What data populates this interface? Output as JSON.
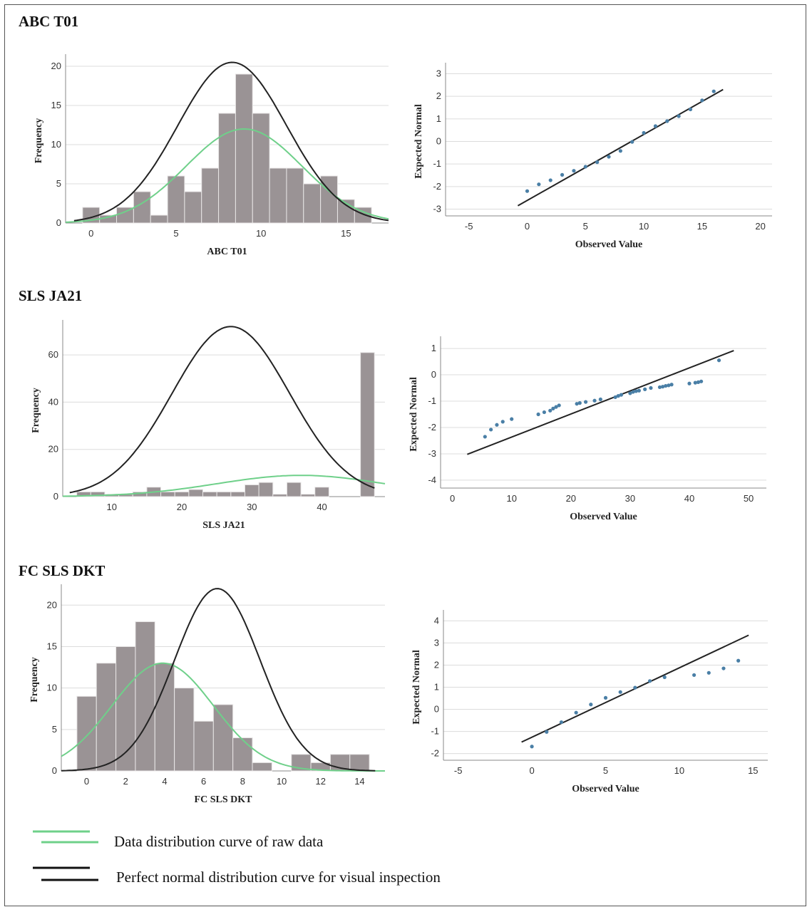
{
  "panel_titles": [
    "ABC T01",
    "SLS JA21",
    "FC SLS DKT"
  ],
  "legend": {
    "raw": "Data distribution curve of raw data",
    "normal": "Perfect normal distribution curve for visual inspection"
  },
  "colors": {
    "bar": "#9a9395",
    "bar_edge": "#e8e6e6",
    "raw_curve": "#6fd08a",
    "normal_curve": "#222222",
    "point": "#4a7fa6",
    "grid": "#dcdcdc"
  },
  "chart_data": [
    {
      "id": "hist-abc",
      "type": "bar",
      "title": "ABC T01",
      "xlabel": "ABC T01",
      "ylabel": "Frequency",
      "xlim": [
        -1.5,
        17.5
      ],
      "ylim": [
        0,
        21
      ],
      "xticks": [
        0,
        5,
        10,
        15
      ],
      "yticks": [
        0,
        5,
        10,
        15,
        20
      ],
      "bin_width": 1,
      "bins": [
        {
          "x": 0,
          "y": 2
        },
        {
          "x": 1,
          "y": 1
        },
        {
          "x": 2,
          "y": 2
        },
        {
          "x": 3,
          "y": 4
        },
        {
          "x": 4,
          "y": 1
        },
        {
          "x": 5,
          "y": 6
        },
        {
          "x": 6,
          "y": 4
        },
        {
          "x": 7,
          "y": 7
        },
        {
          "x": 8,
          "y": 14
        },
        {
          "x": 9,
          "y": 19
        },
        {
          "x": 10,
          "y": 14
        },
        {
          "x": 11,
          "y": 7
        },
        {
          "x": 12,
          "y": 7
        },
        {
          "x": 13,
          "y": 5
        },
        {
          "x": 14,
          "y": 6
        },
        {
          "x": 15,
          "y": 3
        },
        {
          "x": 16,
          "y": 2
        }
      ],
      "normal_curve": {
        "mean": 8.3,
        "sd": 3.2,
        "peak": 20.5,
        "x_range": [
          -1,
          17.5
        ]
      },
      "raw_curve": {
        "mean": 9.0,
        "sd": 3.4,
        "peak": 12,
        "x_range": [
          -1.5,
          17.5
        ]
      }
    },
    {
      "id": "qq-abc",
      "type": "scatter",
      "xlabel": "Observed Value",
      "ylabel": "Expected Normal",
      "xlim": [
        -7,
        21
      ],
      "ylim": [
        -3.3,
        3.3
      ],
      "xticks": [
        -5,
        0,
        5,
        10,
        15,
        20
      ],
      "yticks": [
        -3,
        -2,
        -1,
        0,
        1,
        2,
        3
      ],
      "points": [
        [
          0,
          -2.2
        ],
        [
          1,
          -1.9
        ],
        [
          2,
          -1.72
        ],
        [
          3,
          -1.48
        ],
        [
          4,
          -1.3
        ],
        [
          5,
          -1.12
        ],
        [
          6,
          -0.92
        ],
        [
          7,
          -0.68
        ],
        [
          8,
          -0.42
        ],
        [
          9,
          -0.02
        ],
        [
          10,
          0.38
        ],
        [
          11,
          0.68
        ],
        [
          12,
          0.9
        ],
        [
          13,
          1.12
        ],
        [
          14,
          1.42
        ],
        [
          15,
          1.82
        ],
        [
          16,
          2.22
        ]
      ],
      "line": [
        [
          -0.8,
          -2.85
        ],
        [
          16.8,
          2.3
        ]
      ]
    },
    {
      "id": "hist-sls",
      "type": "bar",
      "title": "SLS JA21",
      "xlabel": "SLS JA21",
      "ylabel": "Frequency",
      "xlim": [
        3,
        49
      ],
      "ylim": [
        0,
        73
      ],
      "xticks": [
        10,
        20,
        30,
        40
      ],
      "yticks": [
        0,
        20,
        40,
        60
      ],
      "bin_width": 2,
      "bins": [
        {
          "x": 6,
          "y": 2
        },
        {
          "x": 8,
          "y": 2
        },
        {
          "x": 10,
          "y": 1
        },
        {
          "x": 12,
          "y": 1
        },
        {
          "x": 14,
          "y": 2
        },
        {
          "x": 16,
          "y": 4
        },
        {
          "x": 18,
          "y": 2
        },
        {
          "x": 20,
          "y": 2
        },
        {
          "x": 22,
          "y": 3
        },
        {
          "x": 24,
          "y": 2
        },
        {
          "x": 26,
          "y": 2
        },
        {
          "x": 28,
          "y": 2
        },
        {
          "x": 30,
          "y": 5
        },
        {
          "x": 32,
          "y": 6
        },
        {
          "x": 34,
          "y": 1
        },
        {
          "x": 36,
          "y": 6
        },
        {
          "x": 38,
          "y": 1
        },
        {
          "x": 40,
          "y": 4
        },
        {
          "x": 46.5,
          "y": 61
        }
      ],
      "normal_curve": {
        "mean": 27,
        "sd": 8.4,
        "peak": 72,
        "x_range": [
          4,
          47.5
        ]
      },
      "raw_curve": {
        "mean": 37,
        "sd": 12,
        "peak": 9,
        "x_range": [
          3,
          49
        ]
      }
    },
    {
      "id": "qq-sls",
      "type": "scatter",
      "xlabel": "Observed Value",
      "ylabel": "Expected Normal",
      "xlim": [
        -2,
        53
      ],
      "ylim": [
        -4.3,
        1.3
      ],
      "xticks": [
        0,
        10,
        20,
        30,
        40,
        50
      ],
      "yticks": [
        -4,
        -3,
        -2,
        -1,
        0,
        1
      ],
      "points": [
        [
          5.5,
          -2.35
        ],
        [
          6.5,
          -2.08
        ],
        [
          7.5,
          -1.9
        ],
        [
          8.5,
          -1.78
        ],
        [
          10,
          -1.68
        ],
        [
          14.5,
          -1.5
        ],
        [
          15.5,
          -1.42
        ],
        [
          16.5,
          -1.36
        ],
        [
          17,
          -1.28
        ],
        [
          17.5,
          -1.22
        ],
        [
          18,
          -1.16
        ],
        [
          21,
          -1.1
        ],
        [
          21.5,
          -1.07
        ],
        [
          22.5,
          -1.03
        ],
        [
          24,
          -0.98
        ],
        [
          25,
          -0.93
        ],
        [
          27.5,
          -0.85
        ],
        [
          28,
          -0.8
        ],
        [
          28.5,
          -0.76
        ],
        [
          30,
          -0.7
        ],
        [
          30.5,
          -0.65
        ],
        [
          31,
          -0.62
        ],
        [
          31.5,
          -0.6
        ],
        [
          32.5,
          -0.55
        ],
        [
          33.5,
          -0.5
        ],
        [
          35,
          -0.47
        ],
        [
          35.5,
          -0.45
        ],
        [
          36,
          -0.42
        ],
        [
          36.5,
          -0.4
        ],
        [
          37,
          -0.37
        ],
        [
          40,
          -0.33
        ],
        [
          41,
          -0.3
        ],
        [
          41.5,
          -0.28
        ],
        [
          42,
          -0.25
        ],
        [
          45,
          0.55
        ]
      ],
      "line": [
        [
          2.5,
          -3.02
        ],
        [
          47.5,
          0.92
        ]
      ]
    },
    {
      "id": "hist-fc",
      "type": "bar",
      "title": "FC SLS DKT",
      "xlabel": "FC SLS DKT",
      "ylabel": "Frequency",
      "xlim": [
        -1.3,
        15.3
      ],
      "ylim": [
        0,
        22
      ],
      "xticks": [
        0,
        2,
        4,
        6,
        8,
        10,
        12,
        14
      ],
      "yticks": [
        0,
        5,
        10,
        15,
        20
      ],
      "bin_width": 1,
      "bins": [
        {
          "x": 0,
          "y": 9
        },
        {
          "x": 1,
          "y": 13
        },
        {
          "x": 2,
          "y": 15
        },
        {
          "x": 3,
          "y": 18
        },
        {
          "x": 4,
          "y": 13
        },
        {
          "x": 5,
          "y": 10
        },
        {
          "x": 6,
          "y": 6
        },
        {
          "x": 7,
          "y": 8
        },
        {
          "x": 8,
          "y": 4
        },
        {
          "x": 9,
          "y": 1
        },
        {
          "x": 11,
          "y": 2
        },
        {
          "x": 12,
          "y": 1
        },
        {
          "x": 13,
          "y": 2
        },
        {
          "x": 14,
          "y": 2
        }
      ],
      "normal_curve": {
        "mean": 6.7,
        "sd": 2.2,
        "peak": 22,
        "x_range": [
          -1.3,
          14.8
        ]
      },
      "raw_curve": {
        "mean": 3.9,
        "sd": 2.6,
        "peak": 13,
        "x_range": [
          -1.3,
          15.3
        ]
      }
    },
    {
      "id": "qq-fc",
      "type": "scatter",
      "xlabel": "Observed Value",
      "ylabel": "Expected Normal",
      "xlim": [
        -6,
        16
      ],
      "ylim": [
        -2.3,
        4.3
      ],
      "xticks": [
        -5,
        0,
        5,
        10,
        15
      ],
      "yticks": [
        -2,
        -1,
        0,
        1,
        2,
        3,
        4
      ],
      "points": [
        [
          0,
          -1.68
        ],
        [
          1,
          -1.02
        ],
        [
          2,
          -0.58
        ],
        [
          3,
          -0.15
        ],
        [
          4,
          0.22
        ],
        [
          5,
          0.52
        ],
        [
          6,
          0.78
        ],
        [
          7,
          0.98
        ],
        [
          8,
          1.28
        ],
        [
          9,
          1.45
        ],
        [
          11,
          1.55
        ],
        [
          12,
          1.65
        ],
        [
          13,
          1.85
        ],
        [
          14,
          2.2
        ]
      ],
      "line": [
        [
          -0.7,
          -1.48
        ],
        [
          14.7,
          3.35
        ]
      ]
    }
  ]
}
